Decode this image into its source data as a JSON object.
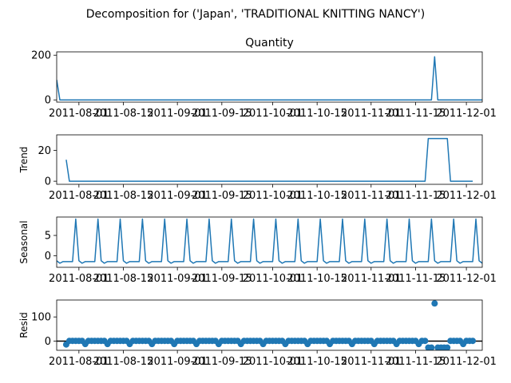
{
  "chart_data": {
    "suptitle": "Decomposition for ('Japan', 'TRADITIONAL KNITTING NANCY')",
    "type": "line",
    "xlim": [
      "2011-07-25",
      "2011-12-06"
    ],
    "x_tick_labels": [
      "2011-08-01",
      "2011-08-15",
      "2011-09-01",
      "2011-09-15",
      "2011-10-01",
      "2011-10-15",
      "2011-11-01",
      "2011-11-15",
      "2011-12-01"
    ],
    "panels": [
      {
        "type": "line",
        "title": "Quantity",
        "ylabel": "",
        "ylim": [
          -10,
          215
        ],
        "y_ticks": [
          0,
          200
        ],
        "color": "#1f77b4",
        "points": [
          [
            "2011-07-25",
            90
          ],
          [
            "2011-07-26",
            0
          ],
          [
            "2011-11-20",
            0
          ],
          [
            "2011-11-21",
            193
          ],
          [
            "2011-11-22",
            0
          ],
          [
            "2011-12-06",
            0
          ]
        ]
      },
      {
        "type": "line",
        "title": "",
        "ylabel": "Trend",
        "ylim": [
          -2,
          30
        ],
        "y_ticks": [
          0,
          20
        ],
        "color": "#1f77b4",
        "points": [
          [
            "2011-07-28",
            13.9
          ],
          [
            "2011-07-29",
            0
          ],
          [
            "2011-11-18",
            0
          ],
          [
            "2011-11-19",
            27.6
          ],
          [
            "2011-11-25",
            27.6
          ],
          [
            "2011-11-26",
            0
          ],
          [
            "2011-12-03",
            0
          ]
        ]
      },
      {
        "type": "line",
        "title": "",
        "ylabel": "Seasonal",
        "ylim": [
          -2.8,
          9.5
        ],
        "y_ticks": [
          0,
          5
        ],
        "color": "#1f77b4",
        "weekly_pattern": [
          -1.2,
          -1.8,
          -1.4,
          -1.4,
          -1.4,
          -1.4,
          9.0
        ],
        "pattern_start": "2011-07-25"
      },
      {
        "type": "scatter",
        "title": "",
        "ylabel": "Resid",
        "ylim": [
          -38,
          170
        ],
        "y_ticks": [
          0,
          100
        ],
        "color": "#1f77b4",
        "baseline": 0,
        "points": [
          [
            "2011-07-28",
            -14
          ],
          [
            "2011-07-29",
            1
          ],
          [
            "2011-07-30",
            1
          ],
          [
            "2011-07-31",
            1
          ],
          [
            "2011-08-01",
            1
          ],
          [
            "2011-08-02",
            1
          ],
          [
            "2011-08-03",
            -12
          ],
          [
            "2011-08-04",
            1
          ],
          [
            "2011-08-05",
            1
          ],
          [
            "2011-08-06",
            1
          ],
          [
            "2011-08-07",
            1
          ],
          [
            "2011-08-08",
            1
          ],
          [
            "2011-08-09",
            1
          ],
          [
            "2011-08-10",
            -12
          ],
          [
            "2011-08-11",
            1
          ],
          [
            "2011-08-12",
            1
          ],
          [
            "2011-08-13",
            1
          ],
          [
            "2011-08-14",
            1
          ],
          [
            "2011-08-15",
            1
          ],
          [
            "2011-08-16",
            1
          ],
          [
            "2011-08-17",
            -12
          ],
          [
            "2011-08-18",
            1
          ],
          [
            "2011-08-19",
            1
          ],
          [
            "2011-08-20",
            1
          ],
          [
            "2011-08-21",
            1
          ],
          [
            "2011-08-22",
            1
          ],
          [
            "2011-08-23",
            1
          ],
          [
            "2011-08-24",
            -12
          ],
          [
            "2011-08-25",
            1
          ],
          [
            "2011-08-26",
            1
          ],
          [
            "2011-08-27",
            1
          ],
          [
            "2011-08-28",
            1
          ],
          [
            "2011-08-29",
            1
          ],
          [
            "2011-08-30",
            1
          ],
          [
            "2011-08-31",
            -12
          ],
          [
            "2011-09-01",
            1
          ],
          [
            "2011-09-02",
            1
          ],
          [
            "2011-09-03",
            1
          ],
          [
            "2011-09-04",
            1
          ],
          [
            "2011-09-05",
            1
          ],
          [
            "2011-09-06",
            1
          ],
          [
            "2011-09-07",
            -12
          ],
          [
            "2011-09-08",
            1
          ],
          [
            "2011-09-09",
            1
          ],
          [
            "2011-09-10",
            1
          ],
          [
            "2011-09-11",
            1
          ],
          [
            "2011-09-12",
            1
          ],
          [
            "2011-09-13",
            1
          ],
          [
            "2011-09-14",
            -12
          ],
          [
            "2011-09-15",
            1
          ],
          [
            "2011-09-16",
            1
          ],
          [
            "2011-09-17",
            1
          ],
          [
            "2011-09-18",
            1
          ],
          [
            "2011-09-19",
            1
          ],
          [
            "2011-09-20",
            1
          ],
          [
            "2011-09-21",
            -12
          ],
          [
            "2011-09-22",
            1
          ],
          [
            "2011-09-23",
            1
          ],
          [
            "2011-09-24",
            1
          ],
          [
            "2011-09-25",
            1
          ],
          [
            "2011-09-26",
            1
          ],
          [
            "2011-09-27",
            1
          ],
          [
            "2011-09-28",
            -12
          ],
          [
            "2011-09-29",
            1
          ],
          [
            "2011-09-30",
            1
          ],
          [
            "2011-10-01",
            1
          ],
          [
            "2011-10-02",
            1
          ],
          [
            "2011-10-03",
            1
          ],
          [
            "2011-10-04",
            1
          ],
          [
            "2011-10-05",
            -12
          ],
          [
            "2011-10-06",
            1
          ],
          [
            "2011-10-07",
            1
          ],
          [
            "2011-10-08",
            1
          ],
          [
            "2011-10-09",
            1
          ],
          [
            "2011-10-10",
            1
          ],
          [
            "2011-10-11",
            1
          ],
          [
            "2011-10-12",
            -12
          ],
          [
            "2011-10-13",
            1
          ],
          [
            "2011-10-14",
            1
          ],
          [
            "2011-10-15",
            1
          ],
          [
            "2011-10-16",
            1
          ],
          [
            "2011-10-17",
            1
          ],
          [
            "2011-10-18",
            1
          ],
          [
            "2011-10-19",
            -12
          ],
          [
            "2011-10-20",
            1
          ],
          [
            "2011-10-21",
            1
          ],
          [
            "2011-10-22",
            1
          ],
          [
            "2011-10-23",
            1
          ],
          [
            "2011-10-24",
            1
          ],
          [
            "2011-10-25",
            1
          ],
          [
            "2011-10-26",
            -12
          ],
          [
            "2011-10-27",
            1
          ],
          [
            "2011-10-28",
            1
          ],
          [
            "2011-10-29",
            1
          ],
          [
            "2011-10-30",
            1
          ],
          [
            "2011-10-31",
            1
          ],
          [
            "2011-11-01",
            1
          ],
          [
            "2011-11-02",
            -12
          ],
          [
            "2011-11-03",
            1
          ],
          [
            "2011-11-04",
            1
          ],
          [
            "2011-11-05",
            1
          ],
          [
            "2011-11-06",
            1
          ],
          [
            "2011-11-07",
            1
          ],
          [
            "2011-11-08",
            1
          ],
          [
            "2011-11-09",
            -12
          ],
          [
            "2011-11-10",
            1
          ],
          [
            "2011-11-11",
            1
          ],
          [
            "2011-11-12",
            1
          ],
          [
            "2011-11-13",
            1
          ],
          [
            "2011-11-14",
            1
          ],
          [
            "2011-11-15",
            1
          ],
          [
            "2011-11-16",
            -12
          ],
          [
            "2011-11-17",
            1
          ],
          [
            "2011-11-18",
            1
          ],
          [
            "2011-11-19",
            -27
          ],
          [
            "2011-11-20",
            -27
          ],
          [
            "2011-11-21",
            156
          ],
          [
            "2011-11-22",
            -27
          ],
          [
            "2011-11-23",
            -27
          ],
          [
            "2011-11-24",
            -27
          ],
          [
            "2011-11-25",
            -27
          ],
          [
            "2011-11-26",
            1
          ],
          [
            "2011-11-27",
            1
          ],
          [
            "2011-11-28",
            1
          ],
          [
            "2011-11-29",
            1
          ],
          [
            "2011-11-30",
            -12
          ],
          [
            "2011-12-01",
            1
          ],
          [
            "2011-12-02",
            1
          ],
          [
            "2011-12-03",
            1
          ]
        ]
      }
    ]
  }
}
